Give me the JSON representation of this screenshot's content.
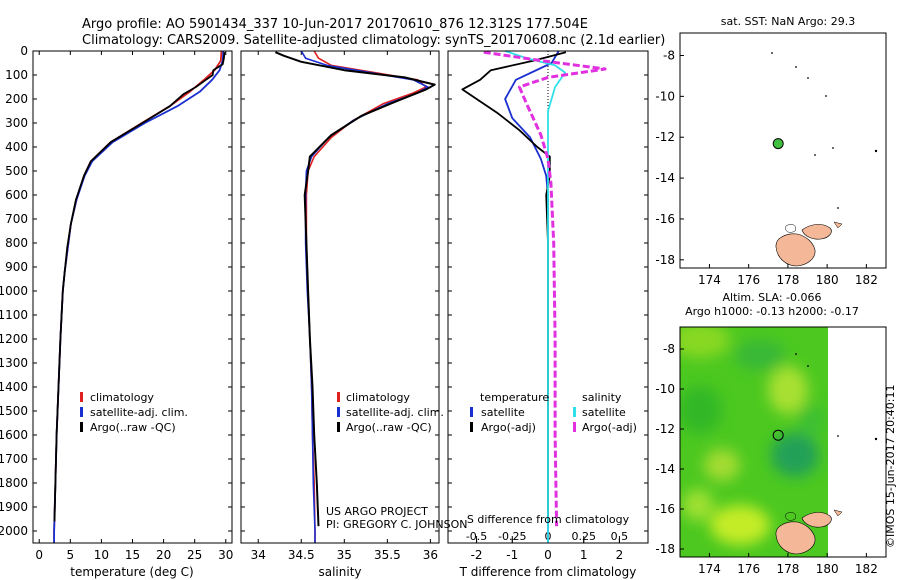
{
  "header": {
    "line1": "Argo profile: AO 5901434_337 10-Jun-2017 20170610_876 12.312S 177.504E",
    "line2": "Climatology: CARS2009. Satellite-adjusted climatology: synTS_20170608.nc (2.1d earlier)"
  },
  "footer": {
    "project": "US ARGO PROJECT",
    "pi": "PI: GREGORY C. JOHNSON",
    "stamp": "©IMOS 15-Jun-2017 20:40:11"
  },
  "colors": {
    "climatology": "#e02020",
    "satellite": "#1a2fd0",
    "argo": "#000000",
    "sal_satellite": "#30e0e8",
    "sal_argo": "#e030e0",
    "land": "#f4b898",
    "float_marker": "#40c040"
  },
  "chart_data": [
    {
      "id": "temperature",
      "type": "line",
      "xlabel": "temperature (deg C)",
      "ylabel": "depth",
      "xlim": [
        -1,
        31
      ],
      "ylim": [
        2050,
        0
      ],
      "xticks": [
        0,
        5,
        10,
        15,
        20,
        25,
        30
      ],
      "yticks": [
        0,
        100,
        200,
        300,
        400,
        500,
        600,
        700,
        800,
        900,
        1000,
        1100,
        1200,
        1300,
        1400,
        1500,
        1600,
        1700,
        1800,
        1900,
        2000
      ],
      "legend": [
        "climatology",
        "satellite-adj. clim.",
        "Argo(..raw -QC)"
      ],
      "series": [
        {
          "name": "climatology",
          "color": "#e02020",
          "points": [
            [
              29.3,
              0
            ],
            [
              29.2,
              40
            ],
            [
              28.2,
              80
            ],
            [
              26.5,
              120
            ],
            [
              24.2,
              170
            ],
            [
              21,
              230
            ],
            [
              16.5,
              300
            ],
            [
              11.5,
              380
            ],
            [
              8.3,
              460
            ],
            [
              7.2,
              520
            ],
            [
              6,
              620
            ],
            [
              5.1,
              720
            ],
            [
              4.6,
              820
            ],
            [
              4.1,
              920
            ],
            [
              3.8,
              1000
            ],
            [
              3.4,
              1200
            ],
            [
              3.1,
              1400
            ],
            [
              2.8,
              1600
            ],
            [
              2.6,
              1800
            ],
            [
              2.4,
              2000
            ],
            [
              2.4,
              2050
            ]
          ]
        },
        {
          "name": "satellite-adj. clim.",
          "color": "#1a2fd0",
          "points": [
            [
              29.6,
              0
            ],
            [
              29.5,
              40
            ],
            [
              29,
              80
            ],
            [
              27.8,
              120
            ],
            [
              25.8,
              170
            ],
            [
              22.2,
              230
            ],
            [
              17,
              300
            ],
            [
              11.8,
              380
            ],
            [
              8.5,
              460
            ],
            [
              7.3,
              520
            ],
            [
              6,
              620
            ],
            [
              5.1,
              720
            ],
            [
              4.6,
              820
            ],
            [
              4.1,
              920
            ],
            [
              3.8,
              1000
            ],
            [
              3.4,
              1200
            ],
            [
              3.1,
              1400
            ],
            [
              2.8,
              1600
            ],
            [
              2.6,
              1800
            ],
            [
              2.4,
              2000
            ],
            [
              2.4,
              2050
            ]
          ]
        },
        {
          "name": "Argo",
          "color": "#000000",
          "points": [
            [
              29.8,
              5
            ],
            [
              29.7,
              30
            ],
            [
              29.5,
              55
            ],
            [
              28,
              80
            ],
            [
              27.9,
              100
            ],
            [
              26.8,
              120
            ],
            [
              25.2,
              150
            ],
            [
              23.2,
              180
            ],
            [
              21,
              230
            ],
            [
              16.6,
              300
            ],
            [
              11.5,
              380
            ],
            [
              8.3,
              460
            ],
            [
              7.2,
              520
            ],
            [
              5.9,
              620
            ],
            [
              5.1,
              720
            ],
            [
              4.5,
              820
            ],
            [
              4.1,
              920
            ],
            [
              3.8,
              1000
            ],
            [
              3.4,
              1200
            ],
            [
              3.1,
              1400
            ],
            [
              2.8,
              1600
            ],
            [
              2.6,
              1800
            ],
            [
              2.45,
              1960
            ]
          ]
        }
      ]
    },
    {
      "id": "salinity",
      "type": "line",
      "xlabel": "salinity",
      "xlim": [
        33.8,
        36.1
      ],
      "ylim": [
        2050,
        0
      ],
      "xticks": [
        34,
        34.5,
        35,
        35.5,
        36
      ],
      "legend": [
        "climatology",
        "satellite-adj. clim.",
        "Argo(..raw -QC)"
      ],
      "series": [
        {
          "name": "climatology",
          "color": "#e02020",
          "points": [
            [
              34.65,
              0
            ],
            [
              34.7,
              30
            ],
            [
              34.85,
              60
            ],
            [
              35.35,
              90
            ],
            [
              35.85,
              120
            ],
            [
              35.95,
              150
            ],
            [
              35.8,
              175
            ],
            [
              35.45,
              220
            ],
            [
              35.1,
              290
            ],
            [
              34.85,
              360
            ],
            [
              34.65,
              440
            ],
            [
              34.58,
              500
            ],
            [
              34.56,
              600
            ],
            [
              34.56,
              800
            ],
            [
              34.58,
              1000
            ],
            [
              34.6,
              1200
            ],
            [
              34.62,
              1400
            ],
            [
              34.63,
              1600
            ],
            [
              34.65,
              1800
            ],
            [
              34.66,
              2000
            ],
            [
              34.66,
              2050
            ]
          ]
        },
        {
          "name": "satellite-adj. clim.",
          "color": "#1a2fd0",
          "points": [
            [
              34.5,
              0
            ],
            [
              34.55,
              30
            ],
            [
              34.8,
              60
            ],
            [
              35.3,
              90
            ],
            [
              35.8,
              120
            ],
            [
              35.97,
              150
            ],
            [
              35.85,
              175
            ],
            [
              35.5,
              220
            ],
            [
              35.1,
              290
            ],
            [
              34.82,
              360
            ],
            [
              34.62,
              440
            ],
            [
              34.56,
              500
            ],
            [
              34.55,
              600
            ],
            [
              34.55,
              800
            ],
            [
              34.57,
              1000
            ],
            [
              34.6,
              1200
            ],
            [
              34.62,
              1400
            ],
            [
              34.63,
              1600
            ],
            [
              34.64,
              1800
            ],
            [
              34.66,
              2000
            ],
            [
              34.66,
              2050
            ]
          ]
        },
        {
          "name": "Argo",
          "color": "#000000",
          "points": [
            [
              34.2,
              5
            ],
            [
              34.3,
              20
            ],
            [
              34.5,
              45
            ],
            [
              35,
              80
            ],
            [
              35.7,
              110
            ],
            [
              36.05,
              140
            ],
            [
              35.95,
              160
            ],
            [
              35.6,
              210
            ],
            [
              35.2,
              270
            ],
            [
              34.85,
              350
            ],
            [
              34.6,
              440
            ],
            [
              34.58,
              500
            ],
            [
              34.54,
              600
            ],
            [
              34.56,
              800
            ],
            [
              34.58,
              1000
            ],
            [
              34.6,
              1200
            ],
            [
              34.63,
              1400
            ],
            [
              34.65,
              1600
            ],
            [
              34.68,
              1800
            ],
            [
              34.7,
              1980
            ]
          ]
        }
      ]
    },
    {
      "id": "difference",
      "type": "line",
      "xlabel_temp": "T difference from climatology",
      "xlabel_sal": "S difference from climatology",
      "xlim_temp": [
        -2.8,
        2.8
      ],
      "xticks_temp": [
        -2,
        -1,
        0,
        1,
        2
      ],
      "xlim_sal": [
        -0.7,
        0.7
      ],
      "xticks_sal": [
        -0.5,
        -0.25,
        0,
        0.25,
        0.5
      ],
      "ylim": [
        2050,
        0
      ],
      "legend_temperature_title": "temperature",
      "legend_salinity_title": "salinity",
      "legend": [
        "satellite",
        "Argo(-adj)",
        "satellite",
        "Argo(-adj)"
      ],
      "series": [
        {
          "name": "T satellite",
          "color": "#1a2fd0",
          "points": [
            [
              0.3,
              0
            ],
            [
              0.1,
              50
            ],
            [
              -0.9,
              120
            ],
            [
              -1.2,
              200
            ],
            [
              -1,
              280
            ],
            [
              -0.5,
              360
            ],
            [
              -0.2,
              450
            ],
            [
              -0.05,
              520
            ],
            [
              0,
              600
            ],
            [
              0,
              800
            ],
            [
              0,
              1000
            ],
            [
              0,
              1500
            ],
            [
              0,
              2050
            ]
          ]
        },
        {
          "name": "T Argo",
          "color": "#000000",
          "points": [
            [
              0.5,
              5
            ],
            [
              -0.4,
              40
            ],
            [
              -1.6,
              80
            ],
            [
              -1.9,
              120
            ],
            [
              -2.4,
              160
            ],
            [
              -2,
              200
            ],
            [
              -1.4,
              260
            ],
            [
              -0.8,
              330
            ],
            [
              -0.3,
              400
            ],
            [
              0.05,
              440
            ],
            [
              0.05,
              520
            ],
            [
              -0.05,
              600
            ],
            [
              0,
              800
            ],
            [
              0,
              1000
            ],
            [
              0,
              1500
            ],
            [
              0,
              1960
            ]
          ]
        },
        {
          "name": "S satellite",
          "color": "#30e0e8",
          "points": [
            [
              -0.3,
              0
            ],
            [
              -0.15,
              30
            ],
            [
              0.05,
              60
            ],
            [
              0.12,
              90
            ],
            [
              0.05,
              150
            ],
            [
              0,
              250
            ],
            [
              0,
              400
            ],
            [
              0,
              600
            ],
            [
              0,
              1000
            ],
            [
              0,
              2050
            ]
          ]
        },
        {
          "name": "S Argo",
          "color": "#e030e0",
          "points": [
            [
              -0.45,
              5
            ],
            [
              -0.05,
              40
            ],
            [
              0.4,
              75
            ],
            [
              0,
              110
            ],
            [
              -0.2,
              150
            ],
            [
              -0.15,
              220
            ],
            [
              -0.05,
              350
            ],
            [
              0,
              450
            ],
            [
              0.02,
              550
            ],
            [
              0.04,
              800
            ],
            [
              0.05,
              1200
            ],
            [
              0.05,
              1600
            ],
            [
              0.06,
              1980
            ]
          ]
        }
      ]
    },
    {
      "id": "map_sst",
      "type": "scatter",
      "title": "sat. SST: NaN Argo: 29.3",
      "xlim": [
        172.5,
        183.0
      ],
      "ylim": [
        -18.4,
        -6.9
      ],
      "xticks": [
        174,
        176,
        178,
        180,
        182
      ],
      "yticks": [
        -8,
        -10,
        -12,
        -14,
        -16,
        -18
      ],
      "float_position": [
        177.504,
        -12.312
      ]
    },
    {
      "id": "map_sla",
      "type": "heatmap",
      "title_line1": "Altim. SLA: -0.066",
      "title_line2": "Argo h1000: -0.13 h2000: -0.17",
      "xlim": [
        172.5,
        183.0
      ],
      "ylim": [
        -18.4,
        -6.9
      ],
      "xticks": [
        174,
        176,
        178,
        180,
        182
      ],
      "yticks": [
        -8,
        -10,
        -12,
        -14,
        -16,
        -18
      ],
      "float_position": [
        177.504,
        -12.312
      ]
    }
  ]
}
